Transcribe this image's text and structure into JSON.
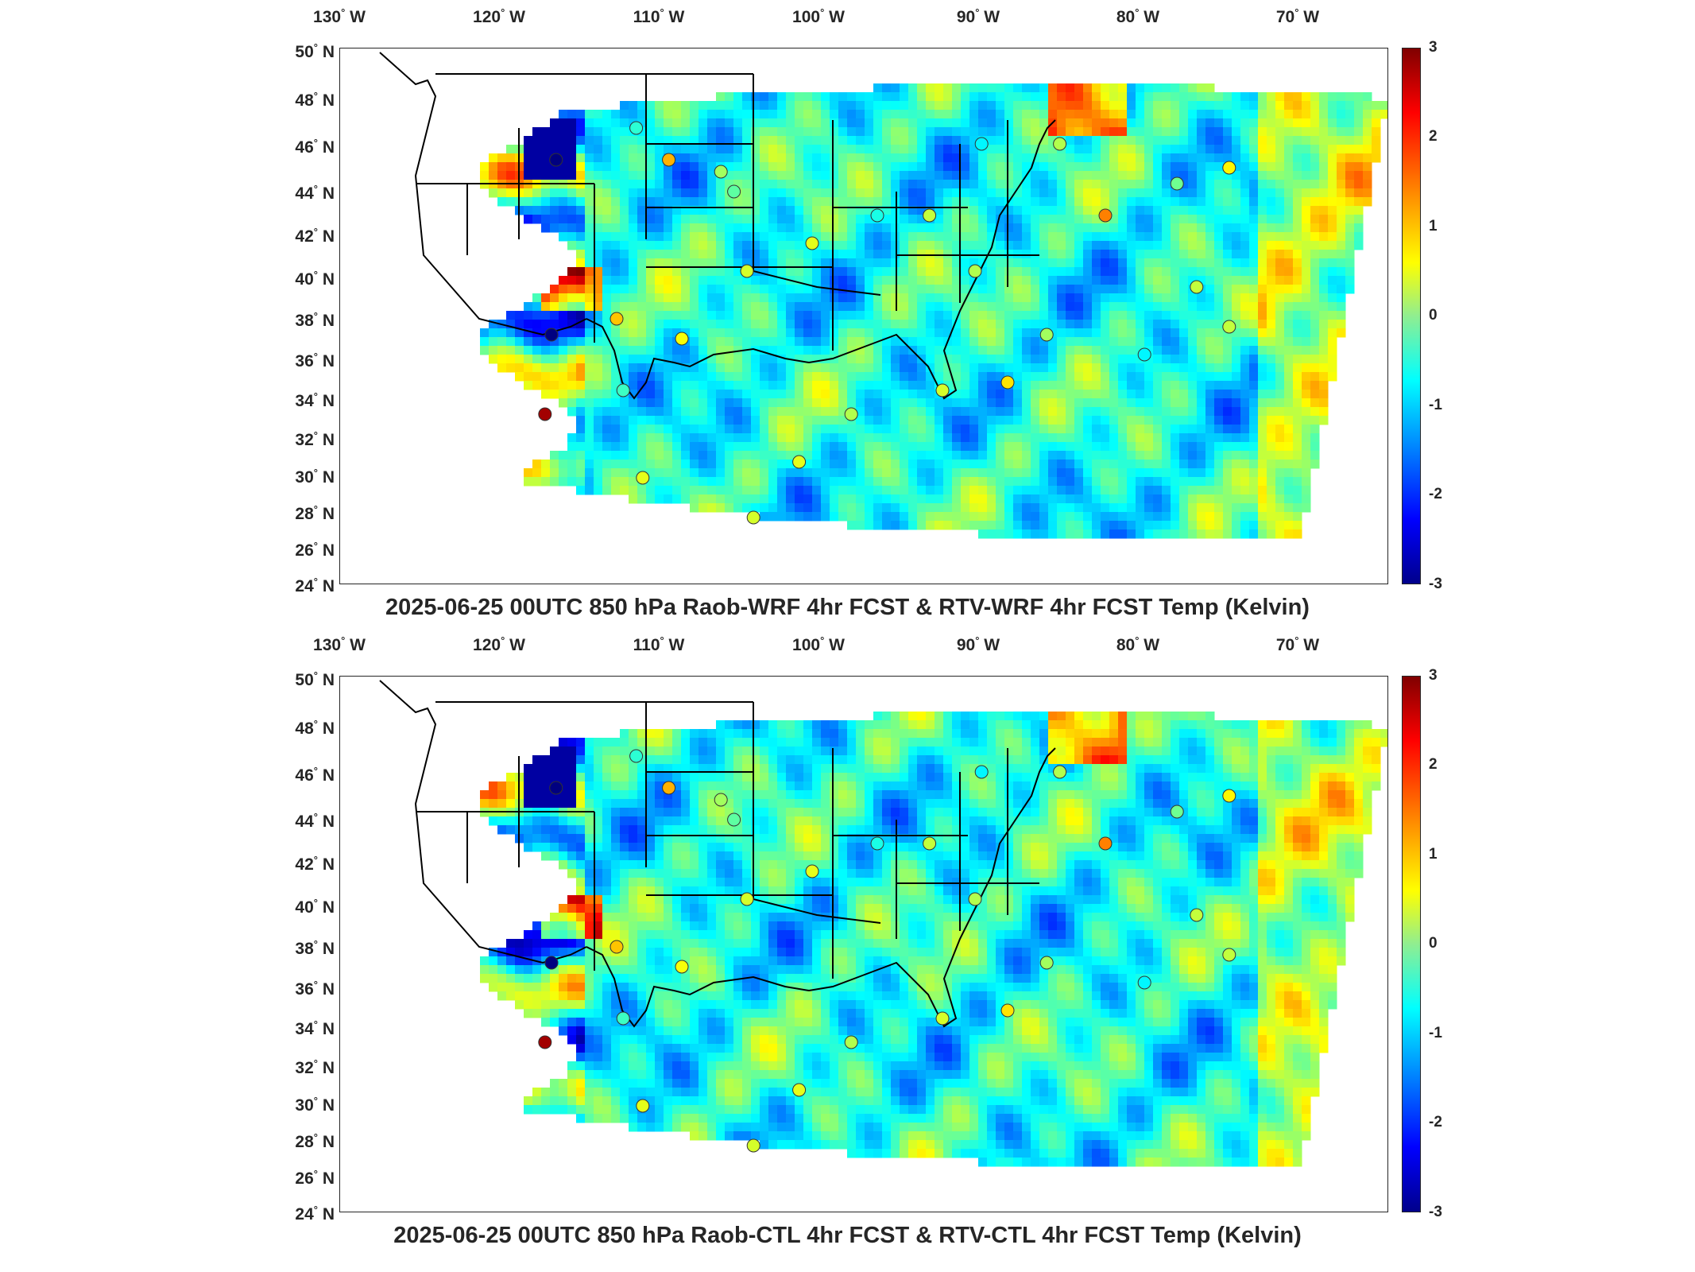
{
  "lon_ticks": [
    "130",
    "120",
    "110",
    "100",
    "90",
    "80",
    "70"
  ],
  "lon_suffix": "W",
  "lat_ticks": [
    "50",
    "48",
    "46",
    "44",
    "42",
    "40",
    "38",
    "36",
    "34",
    "32",
    "30",
    "28",
    "26",
    "24"
  ],
  "lat_suffix": "N",
  "colorbar": {
    "ticks": [
      "3",
      "2",
      "1",
      "0",
      "-1",
      "-2",
      "-3"
    ],
    "min": -3,
    "max": 3,
    "colormap": "jet"
  },
  "panels": [
    {
      "caption": "2025-06-25 00UTC 850 hPa Raob-WRF 4hr FCST & RTV-WRF 4hr FCST Temp (Kelvin)"
    },
    {
      "caption": "2025-06-25 00UTC 850 hPa Raob-CTL 4hr FCST & RTV-CTL 4hr FCST Temp (Kelvin)"
    }
  ],
  "colors": {
    "axis": "#262626",
    "border": "#000000",
    "background": "#ffffff"
  }
}
